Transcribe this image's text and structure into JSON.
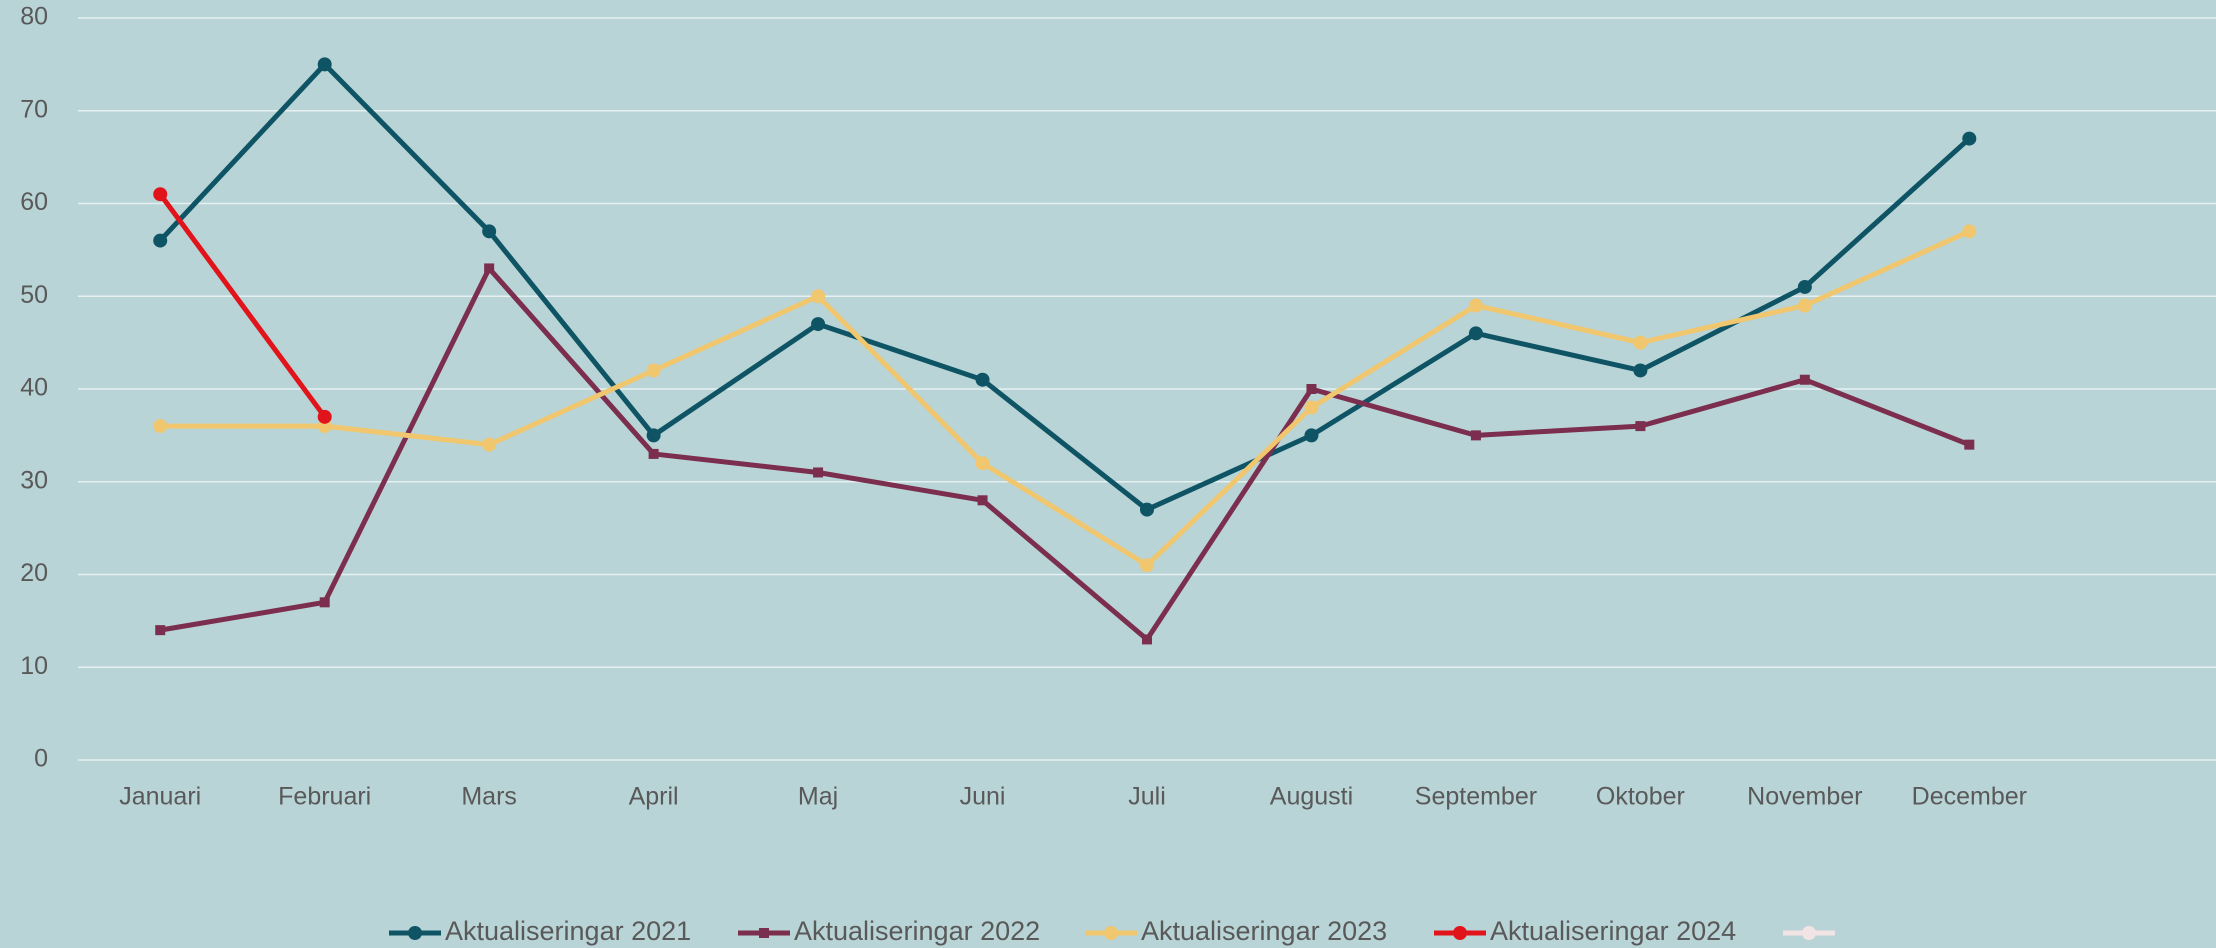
{
  "chart_data": {
    "type": "line",
    "categories": [
      "Januari",
      "Februari",
      "Mars",
      "April",
      "Maj",
      "Juni",
      "Juli",
      "Augusti",
      "September",
      "Oktober",
      "November",
      "December",
      null
    ],
    "series": [
      {
        "name": "Aktualiseringar 2021",
        "color": "#0e5465",
        "values": [
          56,
          75,
          57,
          35,
          47,
          41,
          27,
          35,
          46,
          42,
          51,
          67,
          null
        ]
      },
      {
        "name": "Aktualiseringar 2022",
        "color": "#7b2e4e",
        "values": [
          14,
          17,
          53,
          33,
          31,
          28,
          13,
          40,
          35,
          36,
          41,
          34,
          null
        ]
      },
      {
        "name": "Aktualiseringar 2023",
        "color": "#f0c66e",
        "values": [
          36,
          36,
          34,
          42,
          50,
          32,
          21,
          38,
          49,
          45,
          49,
          57,
          null
        ]
      },
      {
        "name": "Aktualiseringar 2024",
        "color": "#e0141a",
        "values": [
          61,
          37,
          null,
          null,
          null,
          null,
          null,
          null,
          null,
          null,
          null,
          null,
          null
        ]
      },
      {
        "name": null,
        "color": "#f2e4e4",
        "values": [
          null,
          null,
          null,
          null,
          null,
          null,
          null,
          null,
          null,
          null,
          null,
          null,
          null
        ]
      }
    ],
    "ylim": [
      0,
      80
    ],
    "yticks": [
      0,
      10,
      20,
      30,
      40,
      50,
      60,
      70,
      80
    ],
    "grid": true,
    "legend": "bottom"
  }
}
